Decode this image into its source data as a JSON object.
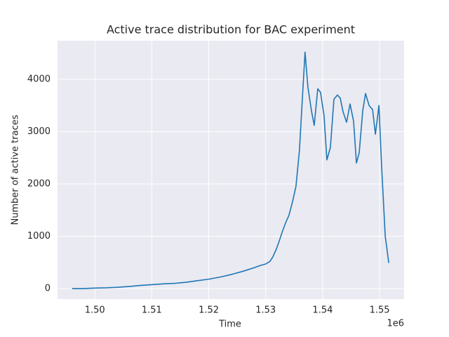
{
  "chart_data": {
    "type": "line",
    "title": "Active trace distribution for BAC experiment",
    "x_label": "Time",
    "y_label": "Number of active traces",
    "x_offset_label": "1e6",
    "grid": true,
    "x": [
      1496000,
      1498000,
      1500000,
      1502000,
      1504000,
      1506000,
      1508000,
      1510000,
      1512000,
      1514000,
      1516000,
      1518000,
      1520000,
      1522000,
      1524000,
      1526000,
      1528000,
      1529000,
      1530000,
      1530740,
      1531230,
      1531850,
      1532350,
      1532960,
      1533580,
      1534080,
      1534690,
      1535310,
      1535930,
      1536420,
      1536910,
      1537410,
      1538030,
      1538520,
      1539140,
      1539630,
      1540250,
      1540740,
      1541360,
      1541980,
      1542590,
      1543090,
      1543580,
      1544200,
      1544810,
      1545430,
      1545930,
      1546420,
      1547040,
      1547530,
      1548150,
      1548770,
      1549260,
      1549880,
      1550370,
      1550990,
      1551610
    ],
    "series": [
      {
        "name": "active traces",
        "color": "#1f77b4",
        "values": [
          0,
          0,
          10,
          15,
          25,
          40,
          60,
          75,
          90,
          100,
          120,
          150,
          180,
          220,
          270,
          330,
          400,
          440,
          470,
          520,
          600,
          750,
          900,
          1100,
          1280,
          1400,
          1650,
          1950,
          2650,
          3600,
          4520,
          3850,
          3400,
          3120,
          3820,
          3750,
          3300,
          2460,
          2700,
          3620,
          3700,
          3640,
          3380,
          3180,
          3530,
          3200,
          2400,
          2600,
          3400,
          3730,
          3500,
          3420,
          2950,
          3500,
          2300,
          1000,
          490
        ]
      }
    ],
    "xlim": [
      1493450,
      1554300
    ],
    "xticks": [
      {
        "value": 1500000,
        "label": "1.50"
      },
      {
        "value": 1510000,
        "label": "1.51"
      },
      {
        "value": 1520000,
        "label": "1.52"
      },
      {
        "value": 1530000,
        "label": "1.53"
      },
      {
        "value": 1540000,
        "label": "1.54"
      },
      {
        "value": 1550000,
        "label": "1.55"
      }
    ],
    "ylim": [
      -201,
      4738
    ],
    "yticks": [
      0,
      1000,
      2000,
      3000,
      4000
    ]
  }
}
